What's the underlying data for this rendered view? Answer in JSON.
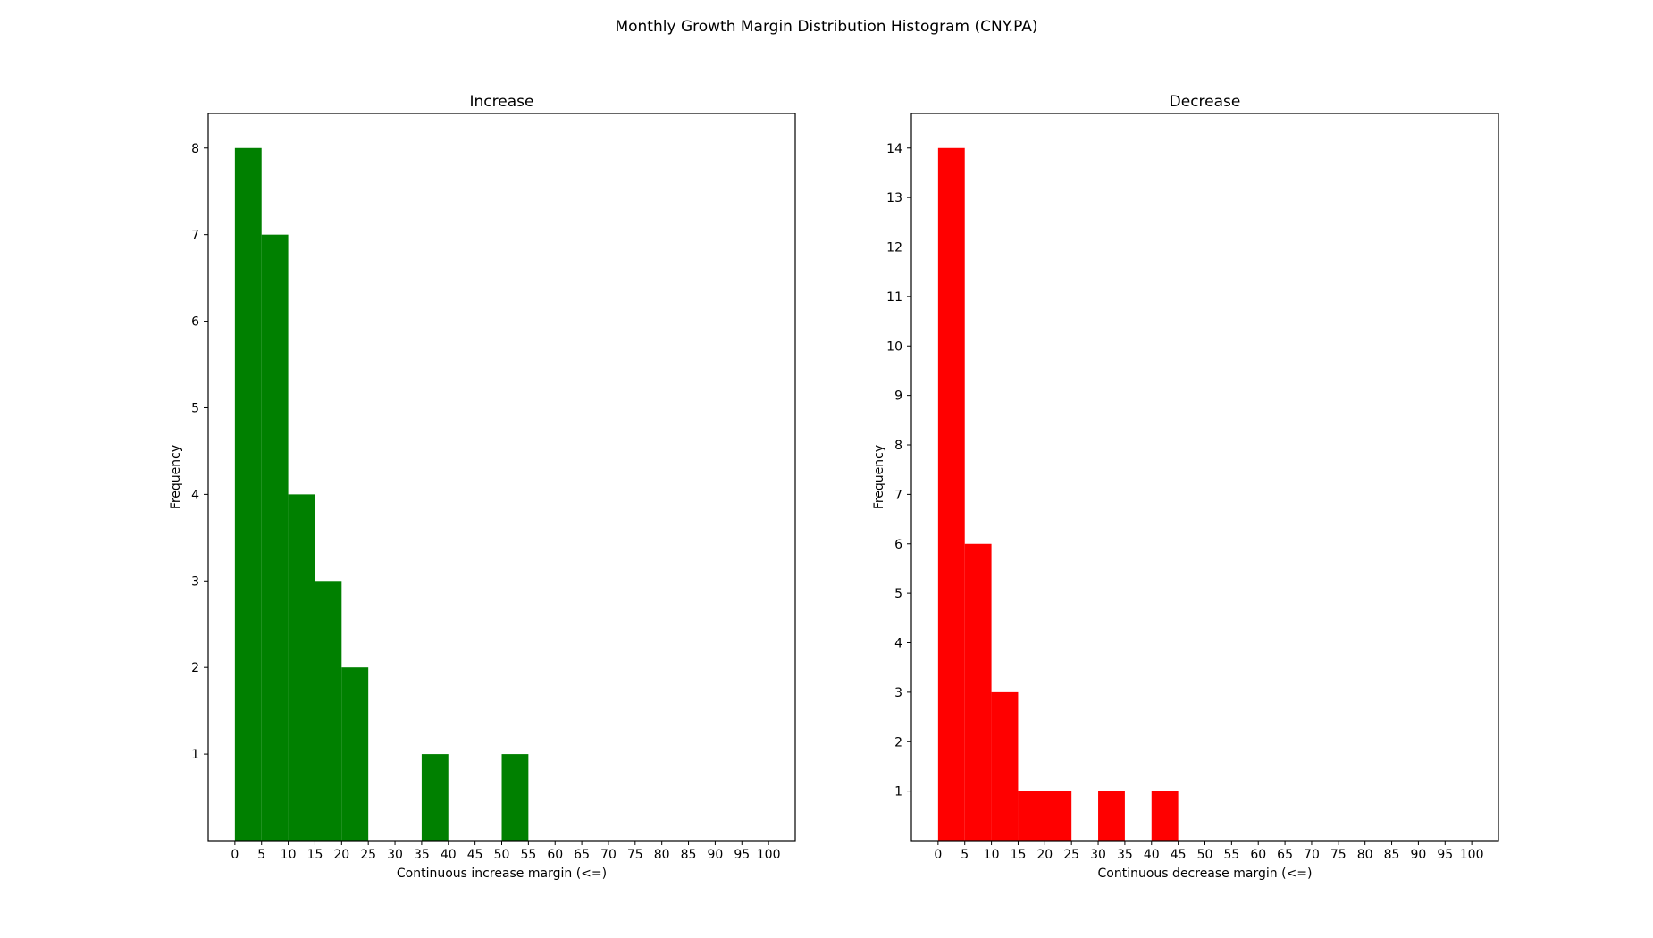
{
  "figure_title": "Monthly Growth Margin Distribution Histogram (CNY.PA)",
  "chart_data": [
    {
      "type": "bar",
      "title": "Increase",
      "xlabel": "Continuous increase margin (<=)",
      "ylabel": "Frequency",
      "color": "#008000",
      "bin_width": 5,
      "x_ticks": [
        0,
        5,
        10,
        15,
        20,
        25,
        30,
        35,
        40,
        45,
        50,
        55,
        60,
        65,
        70,
        75,
        80,
        85,
        90,
        95,
        100
      ],
      "y_ticks": [
        1,
        2,
        3,
        4,
        5,
        6,
        7,
        8
      ],
      "xlim": [
        -5,
        105
      ],
      "ylim": [
        0,
        8.4
      ],
      "bins": [
        {
          "start": 0,
          "end": 5,
          "value": 8
        },
        {
          "start": 5,
          "end": 10,
          "value": 7
        },
        {
          "start": 10,
          "end": 15,
          "value": 4
        },
        {
          "start": 15,
          "end": 20,
          "value": 3
        },
        {
          "start": 20,
          "end": 25,
          "value": 2
        },
        {
          "start": 35,
          "end": 40,
          "value": 1
        },
        {
          "start": 50,
          "end": 55,
          "value": 1
        }
      ]
    },
    {
      "type": "bar",
      "title": "Decrease",
      "xlabel": "Continuous decrease margin (<=)",
      "ylabel": "Frequency",
      "color": "#ff0000",
      "bin_width": 5,
      "x_ticks": [
        0,
        5,
        10,
        15,
        20,
        25,
        30,
        35,
        40,
        45,
        50,
        55,
        60,
        65,
        70,
        75,
        80,
        85,
        90,
        95,
        100
      ],
      "y_ticks": [
        1,
        2,
        3,
        4,
        5,
        6,
        7,
        8,
        9,
        10,
        11,
        12,
        13,
        14
      ],
      "xlim": [
        -5,
        105
      ],
      "ylim": [
        0,
        14.7
      ],
      "bins": [
        {
          "start": 0,
          "end": 5,
          "value": 14
        },
        {
          "start": 5,
          "end": 10,
          "value": 6
        },
        {
          "start": 10,
          "end": 15,
          "value": 3
        },
        {
          "start": 15,
          "end": 20,
          "value": 1
        },
        {
          "start": 20,
          "end": 25,
          "value": 1
        },
        {
          "start": 30,
          "end": 35,
          "value": 1
        },
        {
          "start": 40,
          "end": 45,
          "value": 1
        }
      ]
    }
  ]
}
